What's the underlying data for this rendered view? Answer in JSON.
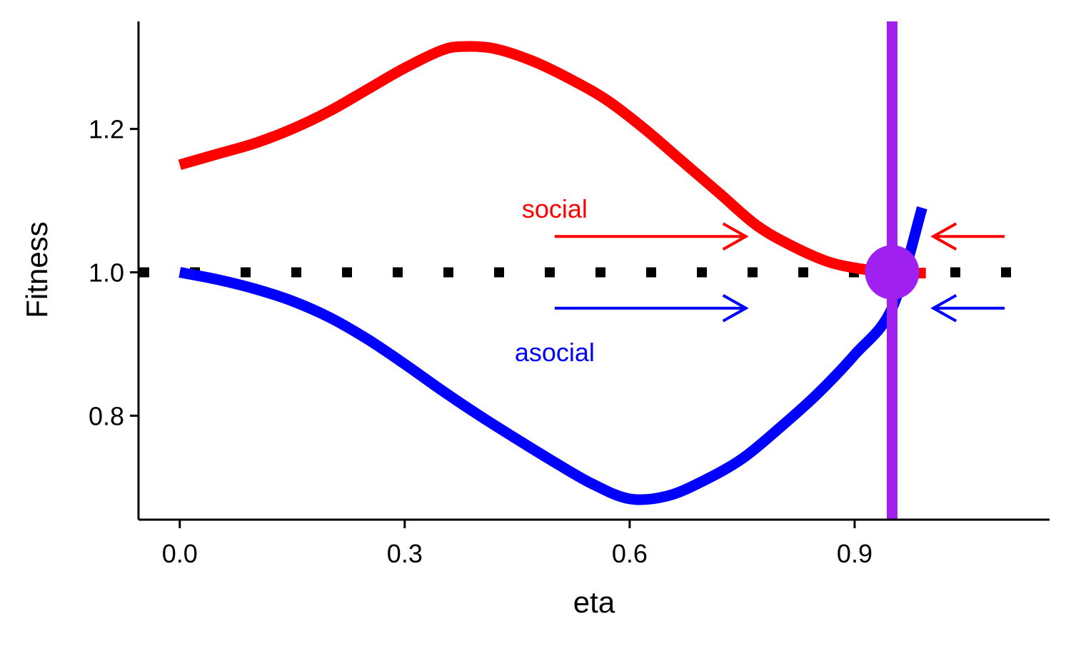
{
  "chart_data": {
    "type": "line",
    "xlabel": "eta",
    "ylabel": "Fitness",
    "xlim": [
      -0.055,
      1.16
    ],
    "ylim": [
      0.655,
      1.35
    ],
    "x_ticks": [
      0.0,
      0.3,
      0.6,
      0.9
    ],
    "x_tick_labels": [
      "0.0",
      "0.3",
      "0.6",
      "0.9"
    ],
    "y_ticks": [
      0.8,
      1.0,
      1.2
    ],
    "y_tick_labels": [
      "0.8",
      "1.0",
      "1.2"
    ],
    "grid": false,
    "series": [
      {
        "key": "social",
        "color": "#ff0000",
        "x": [
          0.0,
          0.05,
          0.1,
          0.15,
          0.2,
          0.25,
          0.3,
          0.35,
          0.38,
          0.42,
          0.47,
          0.52,
          0.57,
          0.62,
          0.67,
          0.72,
          0.77,
          0.82,
          0.87,
          0.92,
          0.95,
          0.98,
          0.995
        ],
        "y": [
          1.15,
          1.165,
          1.18,
          1.2,
          1.225,
          1.255,
          1.285,
          1.31,
          1.315,
          1.312,
          1.295,
          1.27,
          1.24,
          1.2,
          1.155,
          1.11,
          1.065,
          1.035,
          1.013,
          1.003,
          1.0,
          0.999,
          0.999
        ]
      },
      {
        "key": "asocial",
        "color": "#0000ff",
        "x": [
          0.0,
          0.05,
          0.1,
          0.15,
          0.2,
          0.25,
          0.3,
          0.35,
          0.4,
          0.45,
          0.5,
          0.55,
          0.6,
          0.65,
          0.7,
          0.75,
          0.8,
          0.85,
          0.9,
          0.95,
          0.99
        ],
        "y": [
          1.0,
          0.99,
          0.977,
          0.96,
          0.937,
          0.907,
          0.872,
          0.835,
          0.8,
          0.767,
          0.735,
          0.705,
          0.684,
          0.688,
          0.71,
          0.74,
          0.783,
          0.83,
          0.885,
          0.95,
          1.09
        ]
      }
    ],
    "reference_line": {
      "y": 1.0,
      "style": "dotted",
      "color": "#000000"
    },
    "equilibrium": {
      "x": 0.95,
      "y": 1.0,
      "color": "#a020f0"
    },
    "vertical_line": {
      "x": 0.95,
      "color": "#a020f0"
    },
    "annotations": [
      {
        "text": "social",
        "x": 0.5,
        "y": 1.09,
        "color": "#ff0000"
      },
      {
        "text": "asocial",
        "x": 0.5,
        "y": 0.89,
        "color": "#0000ff"
      }
    ],
    "arrows": [
      {
        "from": [
          0.5,
          1.05
        ],
        "to": [
          0.755,
          1.05
        ],
        "color": "#ff0000"
      },
      {
        "from": [
          1.1,
          1.05
        ],
        "to": [
          1.005,
          1.05
        ],
        "color": "#ff0000"
      },
      {
        "from": [
          0.5,
          0.95
        ],
        "to": [
          0.755,
          0.95
        ],
        "color": "#0000ff"
      },
      {
        "from": [
          1.1,
          0.95
        ],
        "to": [
          1.005,
          0.95
        ],
        "color": "#0000ff"
      }
    ]
  }
}
